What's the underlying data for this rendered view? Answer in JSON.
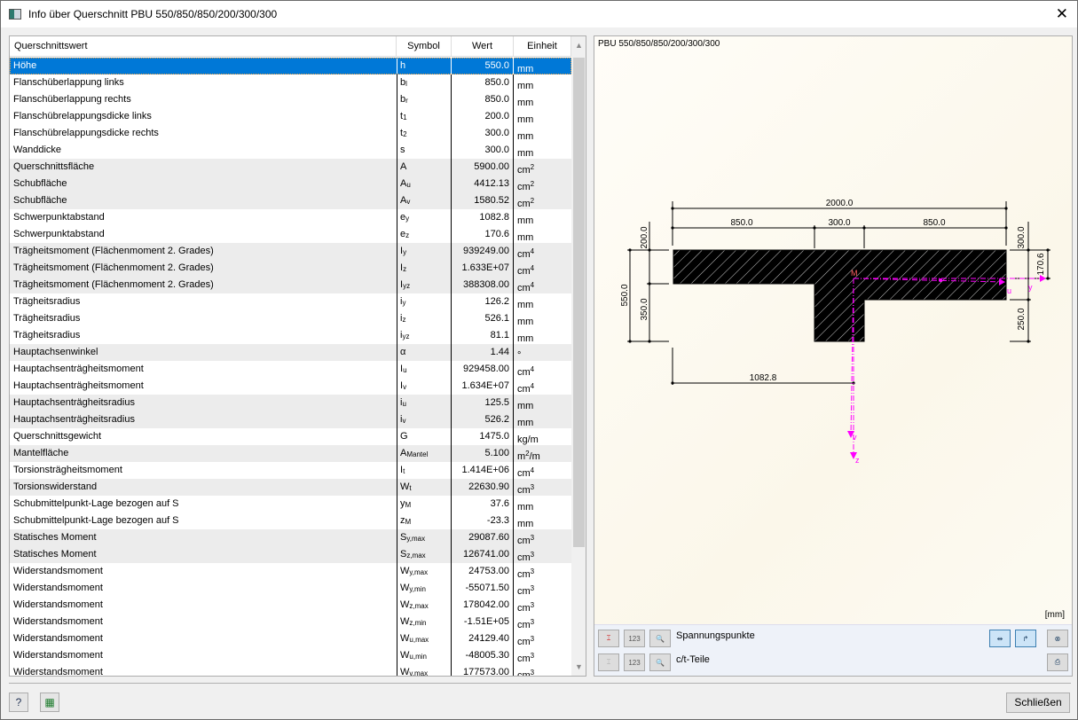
{
  "window": {
    "title": "Info über Querschnitt PBU 550/850/850/200/300/300"
  },
  "table": {
    "headers": [
      "Querschnittswert",
      "Symbol",
      "Wert",
      "Einheit"
    ],
    "rows": [
      {
        "name": "Höhe",
        "sym": "h",
        "sub": "",
        "value": "550.0",
        "unit": "mm",
        "sup": "",
        "shade": "sel"
      },
      {
        "name": "Flanschüberlappung links",
        "sym": "b",
        "sub": "l",
        "value": "850.0",
        "unit": "mm",
        "sup": "",
        "shade": ""
      },
      {
        "name": "Flanschüberlappung rechts",
        "sym": "b",
        "sub": "r",
        "value": "850.0",
        "unit": "mm",
        "sup": "",
        "shade": ""
      },
      {
        "name": "Flanschübrelappungsdicke links",
        "sym": "t",
        "sub": "1",
        "value": "200.0",
        "unit": "mm",
        "sup": "",
        "shade": ""
      },
      {
        "name": "Flanschübrelappungsdicke rechts",
        "sym": "t",
        "sub": "2",
        "value": "300.0",
        "unit": "mm",
        "sup": "",
        "shade": ""
      },
      {
        "name": "Wanddicke",
        "sym": "s",
        "sub": "",
        "value": "300.0",
        "unit": "mm",
        "sup": "",
        "shade": ""
      },
      {
        "name": "Querschnittsfläche",
        "sym": "A",
        "sub": "",
        "value": "5900.00",
        "unit": "cm",
        "sup": "2",
        "shade": "g"
      },
      {
        "name": "Schubfläche",
        "sym": "A",
        "sub": "u",
        "value": "4412.13",
        "unit": "cm",
        "sup": "2",
        "shade": "g"
      },
      {
        "name": "Schubfläche",
        "sym": "A",
        "sub": "v",
        "value": "1580.52",
        "unit": "cm",
        "sup": "2",
        "shade": "g"
      },
      {
        "name": "Schwerpunktabstand",
        "sym": "e",
        "sub": "y",
        "value": "1082.8",
        "unit": "mm",
        "sup": "",
        "shade": ""
      },
      {
        "name": "Schwerpunktabstand",
        "sym": "e",
        "sub": "z",
        "value": "170.6",
        "unit": "mm",
        "sup": "",
        "shade": ""
      },
      {
        "name": "Trägheitsmoment (Flächenmoment 2. Grades)",
        "sym": "I",
        "sub": "y",
        "value": "939249.00",
        "unit": "cm",
        "sup": "4",
        "shade": "g"
      },
      {
        "name": "Trägheitsmoment (Flächenmoment 2. Grades)",
        "sym": "I",
        "sub": "z",
        "value": "1.633E+07",
        "unit": "cm",
        "sup": "4",
        "shade": "g"
      },
      {
        "name": "Trägheitsmoment (Flächenmoment 2. Grades)",
        "sym": "I",
        "sub": "yz",
        "value": "388308.00",
        "unit": "cm",
        "sup": "4",
        "shade": "g"
      },
      {
        "name": "Trägheitsradius",
        "sym": "i",
        "sub": "y",
        "value": "126.2",
        "unit": "mm",
        "sup": "",
        "shade": ""
      },
      {
        "name": "Trägheitsradius",
        "sym": "i",
        "sub": "z",
        "value": "526.1",
        "unit": "mm",
        "sup": "",
        "shade": ""
      },
      {
        "name": "Trägheitsradius",
        "sym": "i",
        "sub": "yz",
        "value": "81.1",
        "unit": "mm",
        "sup": "",
        "shade": ""
      },
      {
        "name": "Hauptachsenwinkel",
        "sym": "α",
        "sub": "",
        "value": "1.44",
        "unit": "°",
        "sup": "",
        "shade": "g"
      },
      {
        "name": "Hauptachsenträgheitsmoment",
        "sym": "I",
        "sub": "u",
        "value": "929458.00",
        "unit": "cm",
        "sup": "4",
        "shade": ""
      },
      {
        "name": "Hauptachsenträgheitsmoment",
        "sym": "I",
        "sub": "v",
        "value": "1.634E+07",
        "unit": "cm",
        "sup": "4",
        "shade": ""
      },
      {
        "name": "Hauptachsenträgheitsradius",
        "sym": "i",
        "sub": "u",
        "value": "125.5",
        "unit": "mm",
        "sup": "",
        "shade": "g"
      },
      {
        "name": "Hauptachsenträgheitsradius",
        "sym": "i",
        "sub": "v",
        "value": "526.2",
        "unit": "mm",
        "sup": "",
        "shade": "g"
      },
      {
        "name": "Querschnittsgewicht",
        "sym": "G",
        "sub": "",
        "value": "1475.0",
        "unit": "kg/m",
        "sup": "",
        "shade": ""
      },
      {
        "name": "Mantelfläche",
        "sym": "A",
        "sub": "Mantel",
        "value": "5.100",
        "unit": "m",
        "sup": "2",
        "unit2": "/m",
        "shade": "g"
      },
      {
        "name": "Torsionsträgheitsmoment",
        "sym": "I",
        "sub": "t",
        "value": "1.414E+06",
        "unit": "cm",
        "sup": "4",
        "shade": ""
      },
      {
        "name": "Torsionswiderstand",
        "sym": "W",
        "sub": "t",
        "value": "22630.90",
        "unit": "cm",
        "sup": "3",
        "shade": "g"
      },
      {
        "name": "Schubmittelpunkt-Lage bezogen auf S",
        "sym": "y",
        "sub": "M",
        "value": "37.6",
        "unit": "mm",
        "sup": "",
        "shade": ""
      },
      {
        "name": "Schubmittelpunkt-Lage bezogen auf S",
        "sym": "z",
        "sub": "M",
        "value": "-23.3",
        "unit": "mm",
        "sup": "",
        "shade": ""
      },
      {
        "name": "Statisches Moment",
        "sym": "S",
        "sub": "y,max",
        "value": "29087.60",
        "unit": "cm",
        "sup": "3",
        "shade": "g"
      },
      {
        "name": "Statisches Moment",
        "sym": "S",
        "sub": "z,max",
        "value": "126741.00",
        "unit": "cm",
        "sup": "3",
        "shade": "g"
      },
      {
        "name": "Widerstandsmoment",
        "sym": "W",
        "sub": "y,max",
        "value": "24753.00",
        "unit": "cm",
        "sup": "3",
        "shade": ""
      },
      {
        "name": "Widerstandsmoment",
        "sym": "W",
        "sub": "y,min",
        "value": "-55071.50",
        "unit": "cm",
        "sup": "3",
        "shade": ""
      },
      {
        "name": "Widerstandsmoment",
        "sym": "W",
        "sub": "z,max",
        "value": "178042.00",
        "unit": "cm",
        "sup": "3",
        "shade": ""
      },
      {
        "name": "Widerstandsmoment",
        "sym": "W",
        "sub": "z,min",
        "value": "-1.51E+05",
        "unit": "cm",
        "sup": "3",
        "shade": ""
      },
      {
        "name": "Widerstandsmoment",
        "sym": "W",
        "sub": "u,max",
        "value": "24129.40",
        "unit": "cm",
        "sup": "3",
        "shade": ""
      },
      {
        "name": "Widerstandsmoment",
        "sym": "W",
        "sub": "u,min",
        "value": "-48005.30",
        "unit": "cm",
        "sup": "3",
        "shade": ""
      },
      {
        "name": "Widerstandsmoment",
        "sym": "W",
        "sub": "v,max",
        "value": "177573.00",
        "unit": "cm",
        "sup": "3",
        "shade": ""
      }
    ]
  },
  "drawing": {
    "title": "PBU 550/850/850/200/300/300",
    "unit": "[mm]",
    "dims": {
      "total_width": "2000.0",
      "left": "850.0",
      "web": "300.0",
      "right": "850.0",
      "t_left": "200.0",
      "t_right": "300.0",
      "height": "550.0",
      "web_below_left": "350.0",
      "web_below_right": "250.0",
      "ez": "170.6",
      "ey": "1082.8"
    },
    "axes": {
      "y": "y",
      "z": "z",
      "u": "u",
      "v": "v",
      "M": "M"
    },
    "colors": {
      "axes": "#ff00ff",
      "section": "#000000"
    }
  },
  "toolbar": {
    "stress_points": "Spannungspunkte",
    "ct_parts": "c/t-Teile",
    "numbers_icon": "123"
  },
  "footer": {
    "close": "Schließen"
  }
}
